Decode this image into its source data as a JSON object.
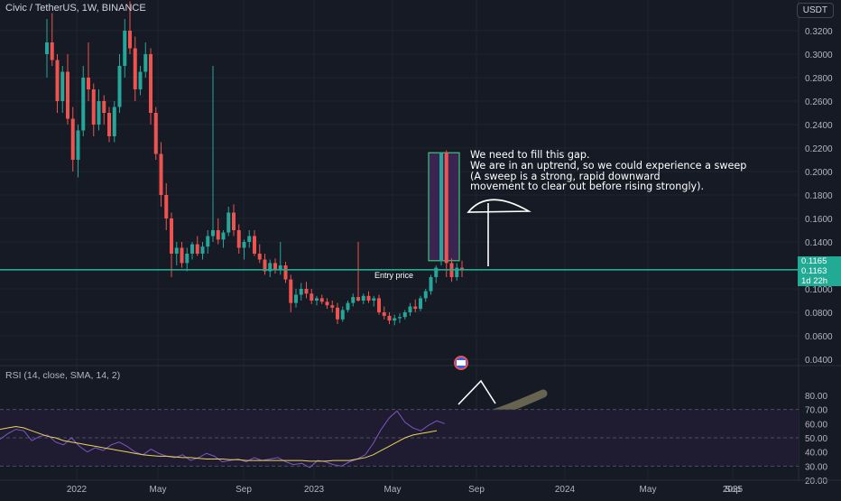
{
  "header": {
    "symbol_title": "Civic / TetherUS, 1W, BINANCE",
    "currency_button": "USDT"
  },
  "rsi_panel": {
    "title": "RSI (14, close, SMA, 14, 2)"
  },
  "annotations": {
    "entry_label": "Entry price",
    "note_lines": [
      "We need to fill this gap.",
      "We are in an uptrend, so we could experience a sweep",
      "(A sweep is a strong, rapid downward",
      "movement to clear out before rising strongly)."
    ]
  },
  "price_tags": {
    "last_price": "0.1165",
    "entry_price": "0.1163",
    "countdown": "1d 22h"
  },
  "colors": {
    "up": "#26a69a",
    "down": "#ef5350",
    "rsi_line": "#7e57c2",
    "rsi_ma": "#e8d55a",
    "entry_line": "#22ab94",
    "background": "#161a25"
  },
  "chart_data": [
    {
      "type": "candlestick",
      "title": "Civic / TetherUS, 1W, BINANCE",
      "y_axis_ticks": [
        "0.3200",
        "0.3000",
        "0.2800",
        "0.2600",
        "0.2400",
        "0.2200",
        "0.2000",
        "0.1800",
        "0.1600",
        "0.1400",
        "0.1000",
        "0.0800",
        "0.0600",
        "0.0400"
      ],
      "x_axis_ticks": [
        "2022",
        "May",
        "Sep",
        "2023",
        "May",
        "Sep",
        "2024",
        "May",
        "Sep",
        "2025"
      ],
      "ylim": [
        0.035,
        0.34
      ],
      "entry_price": 0.1163,
      "last_price": 0.1165,
      "gap_zone": {
        "from": 0.124,
        "to": 0.216
      },
      "candles": [
        [
          0.3,
          0.33,
          0.28,
          0.31
        ],
        [
          0.31,
          0.335,
          0.29,
          0.295
        ],
        [
          0.295,
          0.3,
          0.25,
          0.26
        ],
        [
          0.26,
          0.29,
          0.25,
          0.285
        ],
        [
          0.285,
          0.3,
          0.24,
          0.245
        ],
        [
          0.245,
          0.255,
          0.2,
          0.21
        ],
        [
          0.21,
          0.24,
          0.195,
          0.235
        ],
        [
          0.235,
          0.29,
          0.23,
          0.28
        ],
        [
          0.28,
          0.31,
          0.26,
          0.27
        ],
        [
          0.27,
          0.275,
          0.23,
          0.24
        ],
        [
          0.24,
          0.27,
          0.235,
          0.26
        ],
        [
          0.26,
          0.265,
          0.24,
          0.25
        ],
        [
          0.25,
          0.255,
          0.225,
          0.23
        ],
        [
          0.23,
          0.26,
          0.225,
          0.255
        ],
        [
          0.255,
          0.3,
          0.25,
          0.29
        ],
        [
          0.29,
          0.33,
          0.28,
          0.32
        ],
        [
          0.32,
          0.345,
          0.3,
          0.305
        ],
        [
          0.305,
          0.315,
          0.26,
          0.27
        ],
        [
          0.27,
          0.29,
          0.265,
          0.285
        ],
        [
          0.285,
          0.31,
          0.28,
          0.3
        ],
        [
          0.3,
          0.305,
          0.24,
          0.25
        ],
        [
          0.25,
          0.255,
          0.21,
          0.215
        ],
        [
          0.215,
          0.225,
          0.17,
          0.18
        ],
        [
          0.18,
          0.19,
          0.15,
          0.16
        ],
        [
          0.16,
          0.165,
          0.11,
          0.13
        ],
        [
          0.13,
          0.14,
          0.12,
          0.135
        ],
        [
          0.135,
          0.14,
          0.118,
          0.122
        ],
        [
          0.122,
          0.135,
          0.115,
          0.13
        ],
        [
          0.13,
          0.14,
          0.125,
          0.138
        ],
        [
          0.138,
          0.145,
          0.128,
          0.13
        ],
        [
          0.13,
          0.14,
          0.125,
          0.136
        ],
        [
          0.136,
          0.15,
          0.13,
          0.145
        ],
        [
          0.145,
          0.29,
          0.14,
          0.15
        ],
        [
          0.15,
          0.16,
          0.138,
          0.142
        ],
        [
          0.142,
          0.15,
          0.135,
          0.148
        ],
        [
          0.148,
          0.17,
          0.145,
          0.165
        ],
        [
          0.165,
          0.172,
          0.145,
          0.15
        ],
        [
          0.15,
          0.155,
          0.13,
          0.135
        ],
        [
          0.135,
          0.142,
          0.125,
          0.14
        ],
        [
          0.14,
          0.15,
          0.135,
          0.145
        ],
        [
          0.145,
          0.15,
          0.128,
          0.13
        ],
        [
          0.13,
          0.138,
          0.122,
          0.125
        ],
        [
          0.125,
          0.13,
          0.112,
          0.115
        ],
        [
          0.115,
          0.125,
          0.11,
          0.122
        ],
        [
          0.122,
          0.126,
          0.113,
          0.116
        ],
        [
          0.116,
          0.14,
          0.112,
          0.12
        ],
        [
          0.12,
          0.123,
          0.105,
          0.108
        ],
        [
          0.108,
          0.112,
          0.08,
          0.088
        ],
        [
          0.088,
          0.1,
          0.084,
          0.095
        ],
        [
          0.095,
          0.105,
          0.09,
          0.1
        ],
        [
          0.1,
          0.106,
          0.092,
          0.096
        ],
        [
          0.096,
          0.1,
          0.087,
          0.09
        ],
        [
          0.09,
          0.094,
          0.086,
          0.092
        ],
        [
          0.092,
          0.095,
          0.087,
          0.089
        ],
        [
          0.089,
          0.092,
          0.083,
          0.086
        ],
        [
          0.086,
          0.09,
          0.08,
          0.084
        ],
        [
          0.084,
          0.088,
          0.07,
          0.074
        ],
        [
          0.074,
          0.085,
          0.072,
          0.082
        ],
        [
          0.082,
          0.09,
          0.08,
          0.088
        ],
        [
          0.088,
          0.096,
          0.085,
          0.093
        ],
        [
          0.093,
          0.14,
          0.089,
          0.09
        ],
        [
          0.09,
          0.096,
          0.087,
          0.094
        ],
        [
          0.094,
          0.098,
          0.088,
          0.09
        ],
        [
          0.09,
          0.094,
          0.085,
          0.092
        ],
        [
          0.092,
          0.095,
          0.078,
          0.08
        ],
        [
          0.08,
          0.085,
          0.074,
          0.077
        ],
        [
          0.077,
          0.08,
          0.07,
          0.073
        ],
        [
          0.073,
          0.078,
          0.069,
          0.075
        ],
        [
          0.075,
          0.079,
          0.071,
          0.076
        ],
        [
          0.076,
          0.082,
          0.074,
          0.08
        ],
        [
          0.08,
          0.088,
          0.077,
          0.085
        ],
        [
          0.085,
          0.091,
          0.08,
          0.083
        ],
        [
          0.083,
          0.094,
          0.081,
          0.092
        ],
        [
          0.092,
          0.1,
          0.089,
          0.098
        ],
        [
          0.098,
          0.112,
          0.095,
          0.11
        ],
        [
          0.11,
          0.12,
          0.105,
          0.118
        ],
        [
          0.124,
          0.216,
          0.12,
          0.216
        ],
        [
          0.216,
          0.218,
          0.11,
          0.122
        ],
        [
          0.122,
          0.126,
          0.106,
          0.11
        ],
        [
          0.11,
          0.122,
          0.107,
          0.118
        ],
        [
          0.118,
          0.124,
          0.11,
          0.1165
        ]
      ]
    },
    {
      "type": "line",
      "title": "RSI (14, close, SMA, 14, 2)",
      "y_axis_ticks": [
        "80.00",
        "70.00",
        "60.00",
        "50.00",
        "40.00",
        "30.00",
        "20.00"
      ],
      "ylim": [
        18,
        82
      ],
      "band": [
        30,
        70
      ],
      "series": [
        {
          "values": [
            49,
            53,
            56,
            55,
            48,
            51,
            52,
            47,
            45,
            50,
            44,
            40,
            43,
            41,
            45,
            47,
            44,
            40,
            38,
            42,
            39,
            37,
            36,
            38,
            34,
            36,
            39,
            37,
            33,
            34,
            35,
            33,
            36,
            34,
            35,
            36,
            33,
            31,
            32,
            29,
            34,
            33,
            31,
            30,
            33,
            35,
            38,
            46,
            56,
            64,
            69,
            61,
            57,
            55,
            59,
            62,
            60
          ]
        },
        {
          "values": [
            56,
            57,
            58,
            57,
            55,
            53,
            51,
            50,
            48,
            47,
            46,
            45,
            44,
            43,
            42,
            41,
            40,
            39,
            38,
            37.5,
            37,
            37,
            36.5,
            36,
            36,
            35.5,
            35,
            35,
            35,
            34.5,
            34.5,
            34,
            34,
            34,
            34,
            34,
            34,
            34,
            34,
            33.5,
            33.5,
            33.5,
            34,
            34,
            34,
            35,
            36,
            38,
            41,
            44,
            47,
            50,
            52,
            53,
            54,
            55
          ]
        }
      ]
    }
  ]
}
